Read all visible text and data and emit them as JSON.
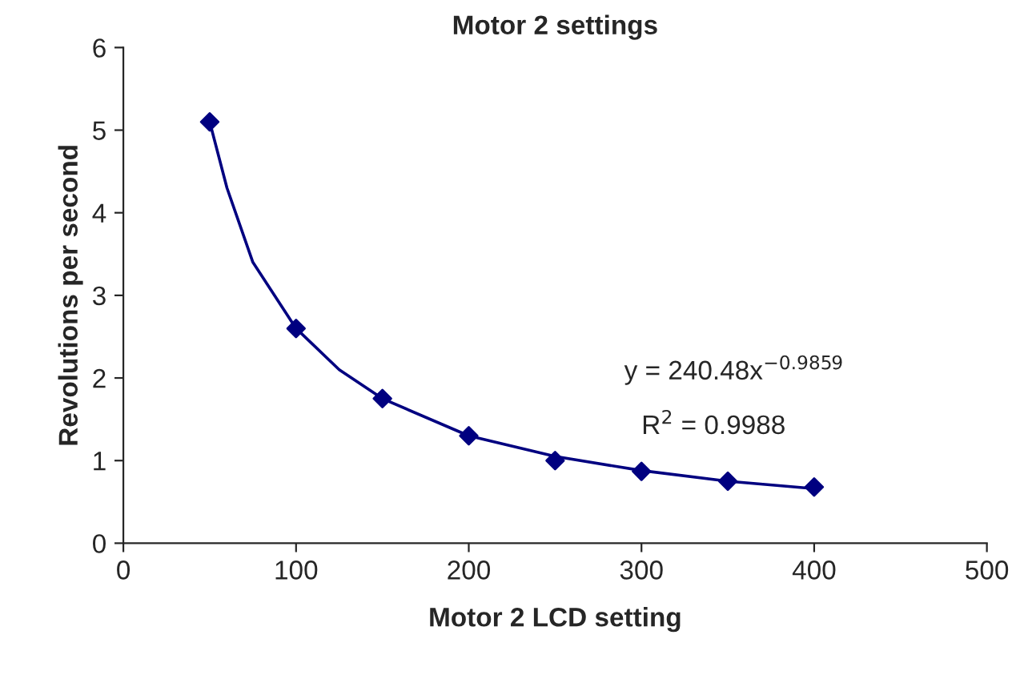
{
  "chart_data": {
    "type": "scatter",
    "title": "Motor 2 settings",
    "xlabel": "Motor 2 LCD setting",
    "ylabel": "Revolutions per second",
    "xlim": [
      0,
      500
    ],
    "xticks": [
      0,
      100,
      200,
      300,
      400,
      500
    ],
    "ylim": [
      0,
      6
    ],
    "yticks": [
      0,
      1,
      2,
      3,
      4,
      5,
      6
    ],
    "grid": false,
    "legend": false,
    "series": [
      {
        "marker": "diamond",
        "color": "#000080",
        "x": [
          50,
          100,
          150,
          200,
          250,
          300,
          350,
          400
        ],
        "values": [
          5.1,
          2.6,
          1.75,
          1.3,
          1.0,
          0.87,
          0.75,
          0.68
        ]
      },
      {
        "type": "line",
        "marker": "none",
        "line_style": "solid",
        "color": "#000080",
        "x": [
          50,
          60,
          75,
          100,
          125,
          150,
          200,
          250,
          300,
          350,
          400
        ],
        "values": [
          5.1,
          4.3,
          3.4,
          2.6,
          2.1,
          1.75,
          1.3,
          1.05,
          0.88,
          0.75,
          0.66
        ]
      }
    ],
    "annotations": [
      "y = 240.48x$^{−0.9859}$",
      "R$^{2}$ = 0.9988"
    ]
  }
}
